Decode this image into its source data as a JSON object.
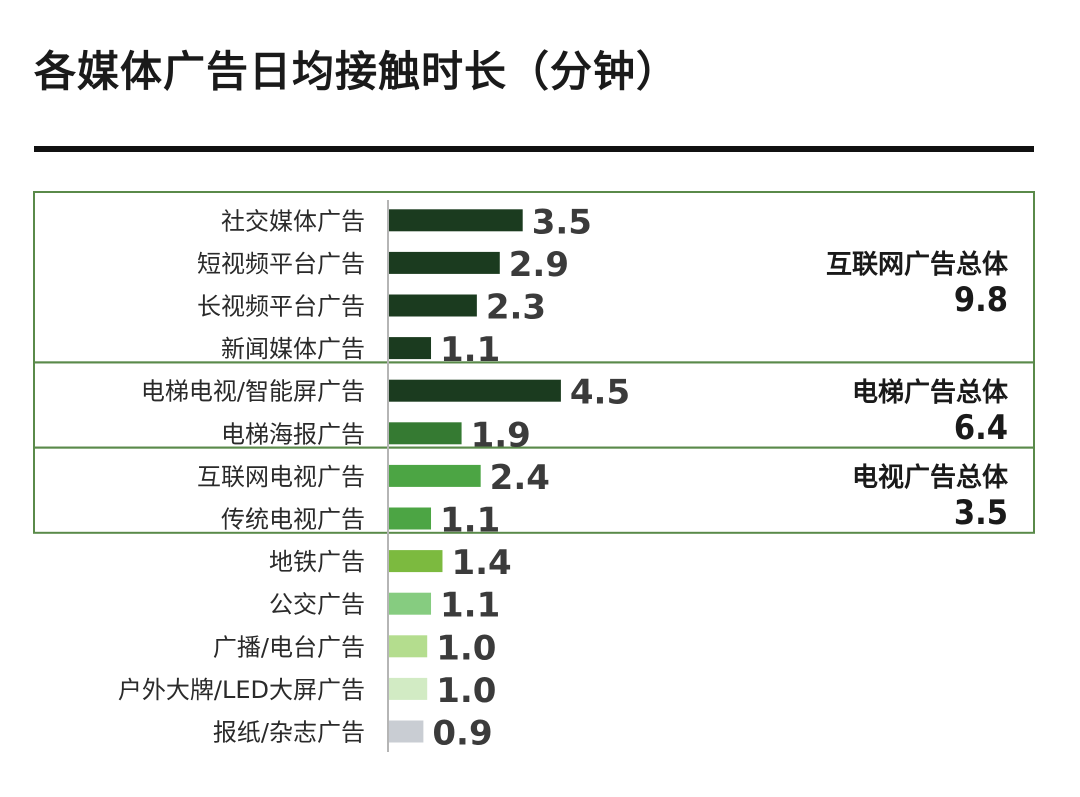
{
  "title": "各媒体广告日均接触时长（分钟）",
  "chart_data": {
    "type": "bar",
    "orientation": "horizontal",
    "categories": [
      "社交媒体广告",
      "短视频平台广告",
      "长视频平台广告",
      "新闻媒体广告",
      "电梯电视/智能屏广告",
      "电梯海报广告",
      "互联网电视广告",
      "传统电视广告",
      "地铁广告",
      "公交广告",
      "广播/电台广告",
      "户外大牌/LED大屏广告",
      "报纸/杂志广告"
    ],
    "values": [
      3.5,
      2.9,
      2.3,
      1.1,
      4.5,
      1.9,
      2.4,
      1.1,
      1.4,
      1.1,
      1.0,
      1.0,
      0.9
    ],
    "value_labels": [
      "3.5",
      "2.9",
      "2.3",
      "1.1",
      "4.5",
      "1.9",
      "2.4",
      "1.1",
      "1.4",
      "1.1",
      "1.0",
      "1.0",
      "0.9"
    ],
    "bar_colors": [
      "#1b3b1f",
      "#1b3b1f",
      "#1b3b1f",
      "#1b3b1f",
      "#1b3b1f",
      "#357a32",
      "#4ca544",
      "#4ca544",
      "#7cba3f",
      "#86cc80",
      "#b4dd8e",
      "#d2ebc4",
      "#c9cdd3"
    ],
    "groups": [
      {
        "label": "互联网广告总体",
        "total": "9.8",
        "first": 0,
        "last": 3
      },
      {
        "label": "电梯广告总体",
        "total": "6.4",
        "first": 4,
        "last": 5
      },
      {
        "label": "电视广告总体",
        "total": "3.5",
        "first": 6,
        "last": 7
      }
    ],
    "xlim": [
      0,
      5
    ],
    "grid": false,
    "legend": "none",
    "colors": {
      "group_border": "#5a8a4a",
      "axis_line": "#b5b5b5",
      "value_text": "#3b3b3b",
      "category_text": "#2a2a2a",
      "group_text": "#1a1a1a"
    }
  }
}
